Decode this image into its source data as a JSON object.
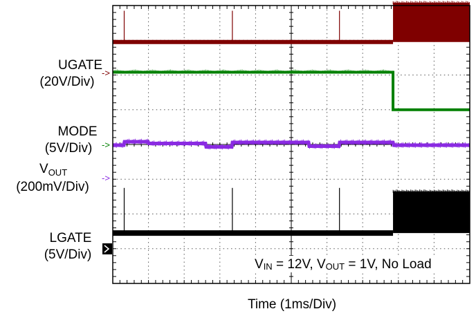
{
  "chart_data": {
    "type": "line",
    "title": "",
    "xlabel": "Time  (1ms/Div)",
    "x_divisions": 10,
    "y_divisions": 8,
    "x_range_ms": [
      0,
      10
    ],
    "grid": true,
    "annotation": {
      "parts": [
        {
          "text": "V",
          "sub": false
        },
        {
          "text": "IN",
          "sub": true
        },
        {
          "text": " = 12V, V",
          "sub": false
        },
        {
          "text": "OUT",
          "sub": true
        },
        {
          "text": " = 1V, No Load",
          "sub": false
        }
      ]
    },
    "series": [
      {
        "key": "ugate",
        "name": "UGATE",
        "scale": "(20V/Div)",
        "color": "#7f0000",
        "baseline_div": 6.95,
        "events": [
          {
            "type": "spike",
            "t_div": 0.32,
            "height_div": 0.9
          },
          {
            "type": "spike",
            "t_div": 3.35,
            "height_div": 0.9
          },
          {
            "type": "spike",
            "t_div": 6.35,
            "height_div": 0.9
          },
          {
            "type": "switching_band",
            "from_div": 7.85,
            "to_div": 10,
            "low_div": 6.95,
            "high_div": 8.08
          }
        ]
      },
      {
        "key": "mode",
        "name": "MODE",
        "scale": "(5V/Div)",
        "color": "#008000",
        "high_div": 6.08,
        "low_div": 5.0,
        "transition_div": 7.85
      },
      {
        "key": "vout",
        "name_parts": [
          {
            "text": "V",
            "sub": false
          },
          {
            "text": "OUT",
            "sub": true
          }
        ],
        "scale": "(200mV/Div)",
        "color": "#8a2be2",
        "baseline_div": 3.98,
        "ripple_steps": [
          {
            "t_div": 0.0,
            "level": 0.0
          },
          {
            "t_div": 0.32,
            "level": 0.1
          },
          {
            "t_div": 1.0,
            "level": 0.05
          },
          {
            "t_div": 2.6,
            "level": -0.05
          },
          {
            "t_div": 3.35,
            "level": 0.08
          },
          {
            "t_div": 5.5,
            "level": -0.03
          },
          {
            "t_div": 6.35,
            "level": 0.08
          },
          {
            "t_div": 7.85,
            "level": 0.0
          }
        ]
      },
      {
        "key": "lgate",
        "name": "LGATE",
        "scale": "(5V/Div)",
        "color": "#000000",
        "baseline_div": 1.45,
        "events": [
          {
            "type": "spike",
            "t_div": 0.32,
            "height_div": 1.3
          },
          {
            "type": "spike",
            "t_div": 3.35,
            "height_div": 1.3
          },
          {
            "type": "spike",
            "t_div": 6.35,
            "height_div": 1.3
          },
          {
            "type": "switching_band",
            "from_div": 7.85,
            "to_div": 10,
            "low_div": 1.45,
            "high_div": 2.65
          }
        ]
      }
    ]
  }
}
